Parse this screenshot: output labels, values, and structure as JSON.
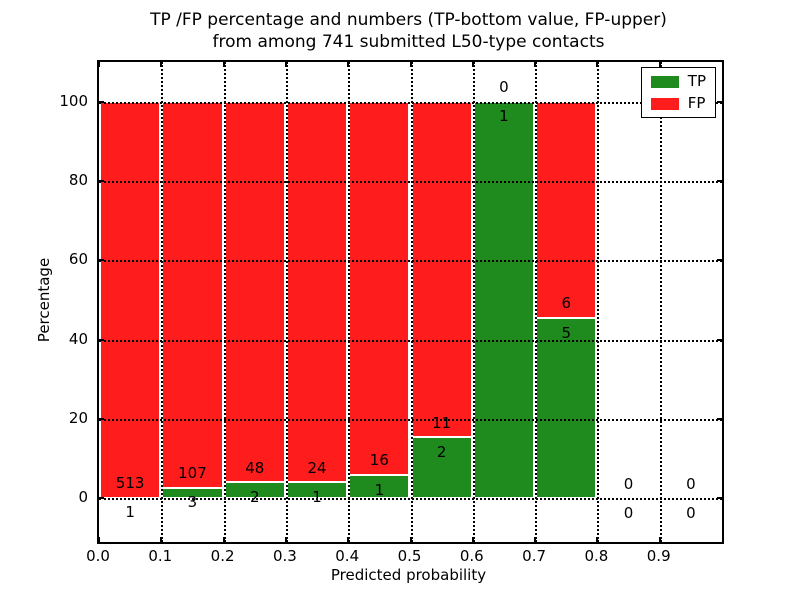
{
  "figure": {
    "title_line1": "TP /FP percentage and numbers (TP-bottom value, FP-upper)",
    "title_line2": "from among 741 submitted L50-type contacts",
    "xlabel": "Predicted probability",
    "ylabel": "Percentage"
  },
  "legend": {
    "items": [
      {
        "label": "TP",
        "color": "#1f8b1f"
      },
      {
        "label": "FP",
        "color": "#ff1c1c"
      }
    ]
  },
  "chart_data": {
    "type": "bar",
    "subtype": "stacked-percentage-histogram",
    "title": "TP /FP percentage and numbers (TP-bottom value, FP-upper) from among 741 submitted L50-type contacts",
    "xlabel": "Predicted probability",
    "ylabel": "Percentage",
    "xlim": [
      0.0,
      1.0
    ],
    "ylim": [
      -11,
      110
    ],
    "bin_width": 0.1,
    "grid": "dotted",
    "grid_above_bars": true,
    "legend_position": "upper right",
    "total_contacts": 741,
    "categories": [
      "0.0-0.1",
      "0.1-0.2",
      "0.2-0.3",
      "0.3-0.4",
      "0.4-0.5",
      "0.5-0.6",
      "0.6-0.7",
      "0.7-0.8",
      "0.8-0.9",
      "0.9-1.0"
    ],
    "series": [
      {
        "name": "TP",
        "color": "#1f8b1f",
        "values": [
          1,
          3,
          2,
          1,
          1,
          2,
          1,
          5,
          0,
          0
        ]
      },
      {
        "name": "FP",
        "color": "#ff1c1c",
        "values": [
          513,
          107,
          48,
          24,
          16,
          11,
          0,
          6,
          0,
          0
        ]
      }
    ],
    "tp_percent_heights": [
      0.19,
      2.73,
      4.0,
      4.0,
      5.88,
      15.38,
      100.0,
      45.45,
      0,
      0
    ],
    "bar_edge_color": "#ffffff",
    "label_offset_pct": 3.7,
    "xticks": [
      {
        "v": 0.0,
        "label": "0.0"
      },
      {
        "v": 0.1,
        "label": "0.1"
      },
      {
        "v": 0.2,
        "label": "0.2"
      },
      {
        "v": 0.3,
        "label": "0.3"
      },
      {
        "v": 0.4,
        "label": "0.4"
      },
      {
        "v": 0.5,
        "label": "0.5"
      },
      {
        "v": 0.6,
        "label": "0.6"
      },
      {
        "v": 0.7,
        "label": "0.7"
      },
      {
        "v": 0.8,
        "label": "0.8"
      },
      {
        "v": 0.9,
        "label": "0.9"
      }
    ],
    "yticks": [
      {
        "v": 0,
        "label": "0"
      },
      {
        "v": 20,
        "label": "20"
      },
      {
        "v": 40,
        "label": "40"
      },
      {
        "v": 60,
        "label": "60"
      },
      {
        "v": 80,
        "label": "80"
      },
      {
        "v": 100,
        "label": "100"
      }
    ]
  }
}
